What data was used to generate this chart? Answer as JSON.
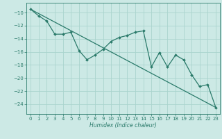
{
  "title": "",
  "xlabel": "Humidex (Indice chaleur)",
  "ylabel": "",
  "background_color": "#cce9e5",
  "line_color": "#2a7a6a",
  "grid_color": "#aad4ce",
  "data_x": [
    0,
    1,
    2,
    3,
    4,
    5,
    6,
    7,
    8,
    9,
    10,
    11,
    12,
    13,
    14,
    15,
    16,
    17,
    18,
    19,
    20,
    21,
    22,
    23
  ],
  "data_y": [
    -9.5,
    -10.5,
    -11.3,
    -13.3,
    -13.3,
    -13.0,
    -15.8,
    -17.2,
    -16.5,
    -15.6,
    -14.4,
    -13.8,
    -13.5,
    -13.0,
    -12.8,
    -18.3,
    -16.1,
    -18.3,
    -16.5,
    -17.2,
    -19.5,
    -21.3,
    -21.0,
    -24.5
  ],
  "trend_x": [
    0,
    23
  ],
  "trend_y": [
    -9.5,
    -24.5
  ],
  "xlim": [
    -0.5,
    23.5
  ],
  "ylim": [
    -25.5,
    -8.5
  ],
  "yticks": [
    -10,
    -12,
    -14,
    -16,
    -18,
    -20,
    -22,
    -24
  ],
  "xticks": [
    0,
    1,
    2,
    3,
    4,
    5,
    6,
    7,
    8,
    9,
    10,
    11,
    12,
    13,
    14,
    15,
    16,
    17,
    18,
    19,
    20,
    21,
    22,
    23
  ],
  "xtick_labels": [
    "0",
    "1",
    "2",
    "3",
    "4",
    "5",
    "6",
    "7",
    "8",
    "9",
    "10",
    "11",
    "12",
    "13",
    "14",
    "15",
    "16",
    "17",
    "18",
    "19",
    "20",
    "21",
    "22",
    "23"
  ],
  "label_fontsize": 5.5,
  "tick_fontsize": 5.0
}
